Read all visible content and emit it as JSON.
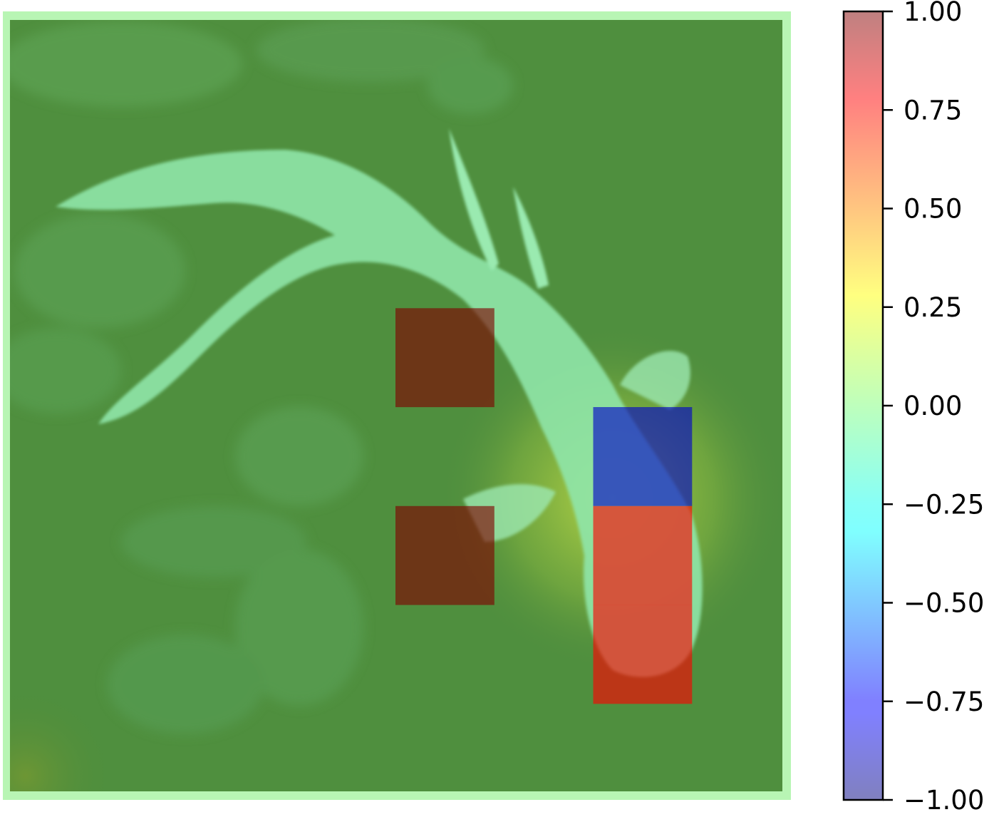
{
  "chart_data": {
    "type": "heatmap",
    "title": "",
    "xlabel": "",
    "ylabel": "",
    "background_image": "overlay of goldfish photo",
    "grid": {
      "rows": 8,
      "cols": 8
    },
    "cells": [
      {
        "row": 3,
        "col": 4,
        "value": 1.0
      },
      {
        "row": 5,
        "col": 4,
        "value": 1.0
      },
      {
        "row": 4,
        "col": 6,
        "value": -0.85
      },
      {
        "row": 5,
        "col": 6,
        "value": 0.75
      },
      {
        "row": 6,
        "col": 6,
        "value": 0.75
      }
    ],
    "default_value": 0.0,
    "colorbar": {
      "min": -1.0,
      "max": 1.0,
      "ticks": [
        "1.00",
        "0.75",
        "0.50",
        "0.25",
        "0.00",
        "−0.25",
        "−0.50",
        "−0.75",
        "−1.00"
      ],
      "tick_values": [
        1.0,
        0.75,
        0.5,
        0.25,
        0.0,
        -0.25,
        -0.5,
        -0.75,
        -1.0
      ],
      "colormap": "jet",
      "alpha": 0.5
    }
  }
}
